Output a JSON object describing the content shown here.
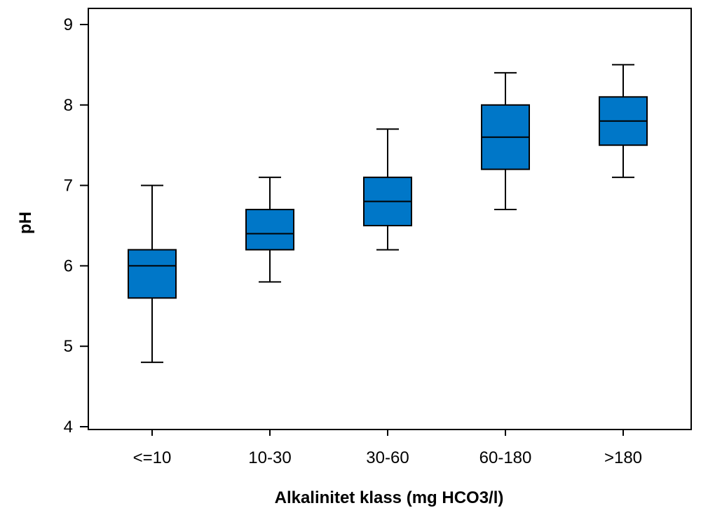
{
  "chart_data": {
    "type": "boxplot",
    "xlabel": "Alkalinitet klass (mg HCO3/l)",
    "ylabel": "pH",
    "ylim": [
      4,
      9
    ],
    "yticks": [
      4,
      5,
      6,
      7,
      8,
      9
    ],
    "grid": false,
    "legend": "none",
    "box_color": "#0077c8",
    "categories": [
      "<=10",
      "10-30",
      "30-60",
      "60-180",
      ">180"
    ],
    "boxes": [
      {
        "category": "<=10",
        "min": 4.8,
        "q1": 5.6,
        "median": 6.0,
        "q3": 6.2,
        "max": 7.0
      },
      {
        "category": "10-30",
        "min": 5.8,
        "q1": 6.2,
        "median": 6.4,
        "q3": 6.7,
        "max": 7.1
      },
      {
        "category": "30-60",
        "min": 6.2,
        "q1": 6.5,
        "median": 6.8,
        "q3": 7.1,
        "max": 7.7
      },
      {
        "category": "60-180",
        "min": 6.7,
        "q1": 7.2,
        "median": 7.6,
        "q3": 8.0,
        "max": 8.4
      },
      {
        "category": ">180",
        "min": 7.1,
        "q1": 7.5,
        "median": 7.8,
        "q3": 8.1,
        "max": 8.5
      }
    ]
  }
}
